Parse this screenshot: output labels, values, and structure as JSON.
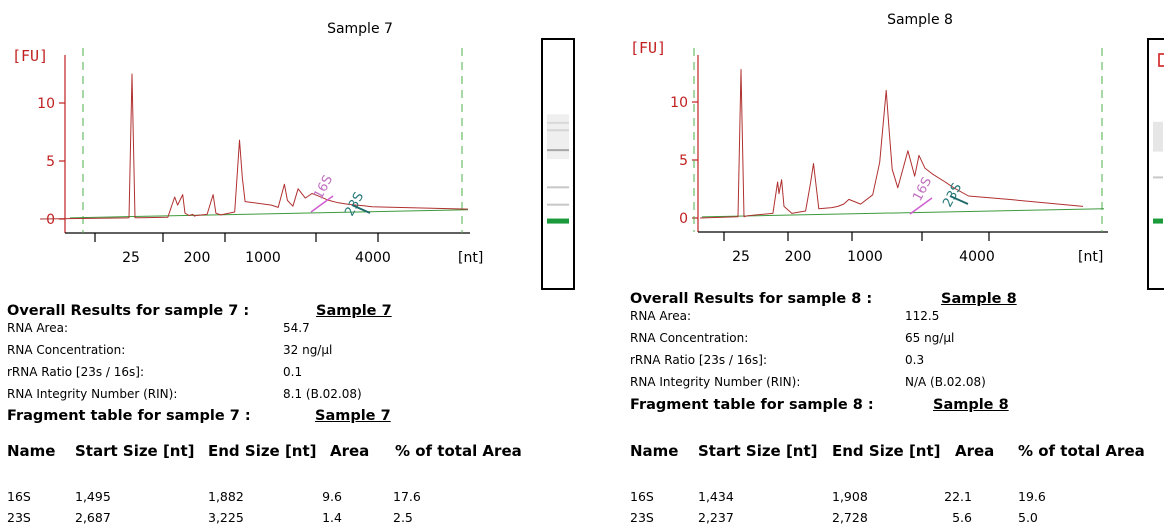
{
  "panels": [
    {
      "sample_title": "Sample 7",
      "fu_label": "[FU]",
      "nt_label": "[nt]",
      "overall_title": "Overall Results for sample 7 :",
      "overall_link": "Sample 7",
      "results": [
        {
          "label": "RNA Area:",
          "value": "54.7"
        },
        {
          "label": "RNA Concentration:",
          "value": "32 ng/µl"
        },
        {
          "label": "rRNA Ratio [23s / 16s]:",
          "value": "0.1"
        },
        {
          "label": "RNA Integrity Number (RIN):",
          "value": "8.1  (B.02.08)"
        }
      ],
      "fragment_title": "Fragment table for sample 7 :",
      "fragment_link": "Sample 7",
      "fragment_headers": [
        "Name",
        "Start Size [nt]",
        "End Size [nt]",
        "Area",
        "% of total Area"
      ],
      "fragment_rows": [
        [
          "16S",
          "1,495",
          "1,882",
          "9.6",
          "17.6"
        ],
        [
          "23S",
          "2,687",
          "3,225",
          "1.4",
          "2.5"
        ]
      ]
    },
    {
      "sample_title": "Sample 8",
      "fu_label": "[FU]",
      "nt_label": "[nt]",
      "overall_title": "Overall Results for sample 8 :",
      "overall_link": "Sample 8",
      "results": [
        {
          "label": "RNA Area:",
          "value": "112.5"
        },
        {
          "label": "RNA Concentration:",
          "value": "65 ng/µl"
        },
        {
          "label": "rRNA Ratio [23s / 16s]:",
          "value": "0.3"
        },
        {
          "label": "RNA Integrity Number (RIN):",
          "value": "N/A  (B.02.08)"
        }
      ],
      "fragment_title": "Fragment table for sample 8 :",
      "fragment_link": "Sample 8",
      "fragment_headers": [
        "Name",
        "Start Size [nt]",
        "End Size [nt]",
        "Area",
        "% of total Area"
      ],
      "fragment_rows": [
        [
          "16S",
          "1,434",
          "1,908",
          "22.1",
          "19.6"
        ],
        [
          "23S",
          "2,237",
          "2,728",
          "5.6",
          "5.0"
        ]
      ]
    }
  ],
  "chart_data": [
    {
      "type": "line",
      "title": "Sample 7",
      "ylabel": "[FU]",
      "xlabel": "[nt]",
      "x_tick_labels": [
        "25",
        "200",
        "1000",
        "4000"
      ],
      "y_ticks": [
        0,
        5,
        10
      ],
      "ylim": [
        -1.5,
        14.5
      ],
      "series_color": "#b03030",
      "peak_annotations": [
        "16S",
        "23S"
      ],
      "x": [
        25,
        32,
        80,
        100,
        110,
        130,
        140,
        160,
        180,
        190,
        200,
        260,
        300,
        320,
        360,
        500,
        560,
        600,
        640,
        1100,
        1200,
        1300,
        1350,
        1450,
        1550,
        1700,
        1850,
        2000,
        2300,
        2600,
        3000,
        3600,
        4000,
        5500
      ],
      "y": [
        12.5,
        0.1,
        0.15,
        1.9,
        1.2,
        2.1,
        0.5,
        0.3,
        0.4,
        0.25,
        0.3,
        0.4,
        2.1,
        0.5,
        0.35,
        0.6,
        6.8,
        3.5,
        1.5,
        1.2,
        1.0,
        3.0,
        1.6,
        1.1,
        2.6,
        1.8,
        2.2,
        2.0,
        1.6,
        1.4,
        1.25,
        1.15,
        1.05,
        0.85
      ],
      "gel_bands": [
        {
          "position": 0.33,
          "color": "#c8c8c8"
        },
        {
          "position": 0.36,
          "color": "#bdbdbd"
        },
        {
          "position": 0.44,
          "color": "#4d4d4d"
        },
        {
          "position": 0.59,
          "color": "#c8c8c8"
        },
        {
          "position": 0.66,
          "color": "#c8c8c8"
        },
        {
          "position": 0.72,
          "color": "#1a9a3a"
        }
      ]
    },
    {
      "type": "line",
      "title": "Sample 8",
      "ylabel": "[FU]",
      "xlabel": "[nt]",
      "x_tick_labels": [
        "25",
        "200",
        "1000",
        "4000"
      ],
      "y_ticks": [
        0,
        5,
        10
      ],
      "ylim": [
        -1.5,
        14.5
      ],
      "series_color": "#b03030",
      "peak_annotations": [
        "16S",
        "23S"
      ],
      "x": [
        25,
        32,
        80,
        95,
        100,
        110,
        120,
        160,
        200,
        240,
        270,
        290,
        330,
        450,
        520,
        600,
        680,
        900,
        1100,
        1200,
        1300,
        1350,
        1400,
        1500,
        1700,
        1850,
        1950,
        2100,
        2300,
        2700,
        3000,
        3600,
        4400,
        5500
      ],
      "y": [
        12.8,
        0.2,
        0.4,
        3.1,
        2.1,
        3.3,
        1.0,
        0.4,
        0.5,
        0.6,
        3.0,
        4.7,
        0.8,
        0.9,
        1.0,
        1.2,
        1.6,
        1.2,
        2.0,
        4.8,
        11.0,
        7.5,
        4.2,
        2.6,
        5.8,
        3.6,
        5.4,
        4.3,
        3.8,
        3.1,
        2.6,
        1.9,
        1.6,
        1.0
      ],
      "gel_bands": [
        {
          "position": 0.55,
          "color": "#c8c8c8"
        },
        {
          "position": 0.72,
          "color": "#1a9a3a"
        }
      ]
    }
  ]
}
